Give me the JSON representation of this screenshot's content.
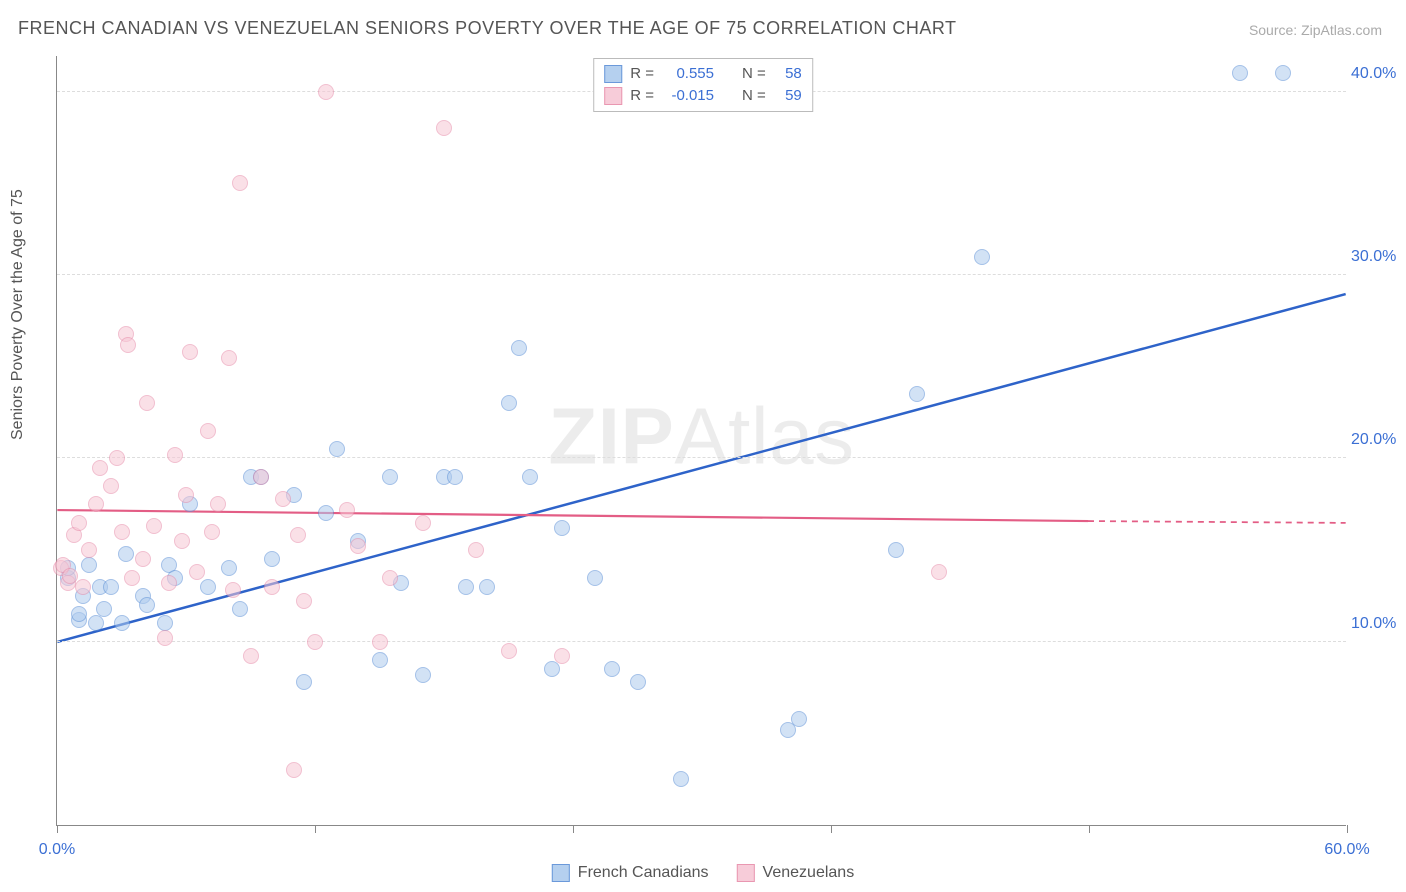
{
  "title": "FRENCH CANADIAN VS VENEZUELAN SENIORS POVERTY OVER THE AGE OF 75 CORRELATION CHART",
  "source": "Source: ZipAtlas.com",
  "ylabel": "Seniors Poverty Over the Age of 75",
  "watermark_strong": "ZIP",
  "watermark_light": "Atlas",
  "chart": {
    "type": "scatter",
    "xlim": [
      0,
      60
    ],
    "ylim": [
      0,
      42
    ],
    "xticks": [
      0,
      60
    ],
    "xtick_labels": [
      "0.0%",
      "60.0%"
    ],
    "xtick_marks": [
      0,
      12,
      24,
      36,
      48,
      60
    ],
    "yticks": [
      10,
      20,
      30,
      40
    ],
    "ytick_labels": [
      "10.0%",
      "20.0%",
      "30.0%",
      "40.0%"
    ],
    "background_color": "#ffffff",
    "grid_color": "#dddddd",
    "axis_color": "#888888",
    "tick_label_color": "#3b6fd4",
    "marker_radius": 8,
    "series": [
      {
        "id": "french_canadians",
        "label": "French Canadians",
        "color_fill": "#aecbee",
        "color_stroke": "#5b8fd6",
        "line_color": "#2e63c9",
        "line_width": 2.5,
        "r": 0.555,
        "n": 58,
        "trend": {
          "x1": 0,
          "y1": 10,
          "x2": 60,
          "y2": 29
        },
        "points": [
          [
            0.5,
            13.5
          ],
          [
            0.5,
            14
          ],
          [
            1,
            11.2
          ],
          [
            1,
            11.5
          ],
          [
            1.2,
            12.5
          ],
          [
            1.5,
            14.2
          ],
          [
            1.8,
            11.0
          ],
          [
            2,
            13
          ],
          [
            2.2,
            11.8
          ],
          [
            2.5,
            13
          ],
          [
            3,
            11
          ],
          [
            3.2,
            14.8
          ],
          [
            4,
            12.5
          ],
          [
            4.2,
            12.0
          ],
          [
            5,
            11
          ],
          [
            5.2,
            14.2
          ],
          [
            5.5,
            13.5
          ],
          [
            6.2,
            17.5
          ],
          [
            7,
            13
          ],
          [
            8,
            14
          ],
          [
            8.5,
            11.8
          ],
          [
            9,
            19
          ],
          [
            9.5,
            19
          ],
          [
            10,
            14.5
          ],
          [
            11,
            18
          ],
          [
            11.5,
            7.8
          ],
          [
            12.5,
            17
          ],
          [
            13,
            20.5
          ],
          [
            14,
            15.5
          ],
          [
            15,
            9
          ],
          [
            15.5,
            19
          ],
          [
            16,
            13.2
          ],
          [
            17,
            8.2
          ],
          [
            18,
            19
          ],
          [
            18.5,
            19
          ],
          [
            19,
            13
          ],
          [
            20,
            13
          ],
          [
            21,
            23
          ],
          [
            21.5,
            26
          ],
          [
            22,
            19
          ],
          [
            23,
            8.5
          ],
          [
            23.5,
            16.2
          ],
          [
            25,
            13.5
          ],
          [
            25.8,
            8.5
          ],
          [
            27,
            7.8
          ],
          [
            29,
            2.5
          ],
          [
            34,
            5.2
          ],
          [
            34.5,
            5.8
          ],
          [
            39,
            15
          ],
          [
            40,
            23.5
          ],
          [
            43,
            31
          ],
          [
            55,
            41
          ],
          [
            57,
            41
          ]
        ]
      },
      {
        "id": "venezuelans",
        "label": "Venezuelans",
        "color_fill": "#f7c7d5",
        "color_stroke": "#e78ca9",
        "line_color": "#e35d85",
        "line_width": 2.2,
        "r": -0.015,
        "n": 59,
        "trend": {
          "x1": 0,
          "y1": 17.2,
          "x2": 48,
          "y2": 16.6
        },
        "trend_dashed_ext": {
          "x1": 48,
          "y1": 16.6,
          "x2": 60,
          "y2": 16.5
        },
        "points": [
          [
            0.2,
            14.0
          ],
          [
            0.3,
            14.2
          ],
          [
            0.5,
            13.2
          ],
          [
            0.6,
            13.6
          ],
          [
            0.8,
            15.8
          ],
          [
            1,
            16.5
          ],
          [
            1.2,
            13
          ],
          [
            1.5,
            15.0
          ],
          [
            1.8,
            17.5
          ],
          [
            2,
            19.5
          ],
          [
            2.5,
            18.5
          ],
          [
            2.8,
            20
          ],
          [
            3,
            16
          ],
          [
            3.2,
            26.8
          ],
          [
            3.3,
            26.2
          ],
          [
            3.5,
            13.5
          ],
          [
            4,
            14.5
          ],
          [
            4.2,
            23
          ],
          [
            4.5,
            16.3
          ],
          [
            5,
            10.2
          ],
          [
            5.2,
            13.2
          ],
          [
            5.5,
            20.2
          ],
          [
            5.8,
            15.5
          ],
          [
            6,
            18
          ],
          [
            6.2,
            25.8
          ],
          [
            6.5,
            13.8
          ],
          [
            7,
            21.5
          ],
          [
            7.2,
            16
          ],
          [
            7.5,
            17.5
          ],
          [
            8,
            25.5
          ],
          [
            8.2,
            12.8
          ],
          [
            8.5,
            35
          ],
          [
            9,
            9.2
          ],
          [
            9.5,
            19
          ],
          [
            10,
            13
          ],
          [
            10.5,
            17.8
          ],
          [
            11,
            3
          ],
          [
            11.2,
            15.8
          ],
          [
            11.5,
            12.2
          ],
          [
            12,
            10
          ],
          [
            12.5,
            40
          ],
          [
            13.5,
            17.2
          ],
          [
            14,
            15.2
          ],
          [
            15,
            10
          ],
          [
            15.5,
            13.5
          ],
          [
            17,
            16.5
          ],
          [
            18,
            38
          ],
          [
            19.5,
            15
          ],
          [
            21,
            9.5
          ],
          [
            23.5,
            9.2
          ],
          [
            41,
            13.8
          ]
        ]
      }
    ]
  },
  "legend_top": {
    "rows": [
      {
        "swatch_fill": "#aecbee",
        "swatch_stroke": "#5b8fd6",
        "r_label": "R =",
        "r_val": "0.555",
        "n_label": "N =",
        "n_val": "58"
      },
      {
        "swatch_fill": "#f7c7d5",
        "swatch_stroke": "#e78ca9",
        "r_label": "R =",
        "r_val": "-0.015",
        "n_label": "N =",
        "n_val": "59"
      }
    ]
  },
  "legend_bottom": {
    "items": [
      {
        "swatch_fill": "#aecbee",
        "swatch_stroke": "#5b8fd6",
        "label": "French Canadians"
      },
      {
        "swatch_fill": "#f7c7d5",
        "swatch_stroke": "#e78ca9",
        "label": "Venezuelans"
      }
    ]
  }
}
